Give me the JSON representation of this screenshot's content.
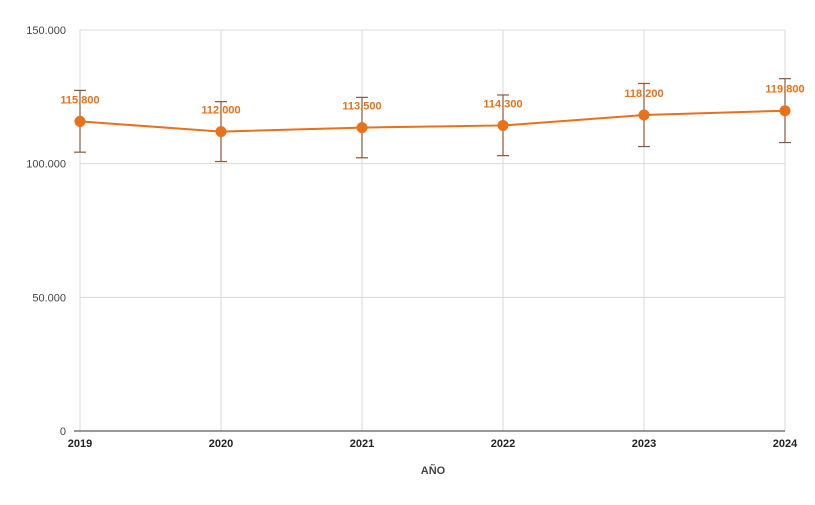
{
  "chart_data": {
    "type": "line",
    "title": "",
    "xlabel": "AÑO",
    "ylabel": "",
    "categories": [
      "2019",
      "2020",
      "2021",
      "2022",
      "2023",
      "2024"
    ],
    "series": [
      {
        "values": [
          115800,
          112000,
          113500,
          114300,
          118200,
          119800
        ],
        "error_low": [
          104300,
          100800,
          102200,
          103000,
          106400,
          107900
        ],
        "error_high": [
          127400,
          123200,
          124800,
          125700,
          130000,
          131800
        ],
        "data_labels": [
          "115.800",
          "112.000",
          "113.500",
          "114.300",
          "118.200",
          "119.800"
        ],
        "color": "#e8711a"
      }
    ],
    "error_bar_color": "#8a5a3a",
    "ylim": [
      0,
      150000
    ],
    "yticks": [
      0,
      50000,
      100000,
      150000
    ],
    "ytick_labels": [
      "0",
      "50.000",
      "100.000",
      "150.000"
    ],
    "grid": true,
    "legend": "none"
  }
}
